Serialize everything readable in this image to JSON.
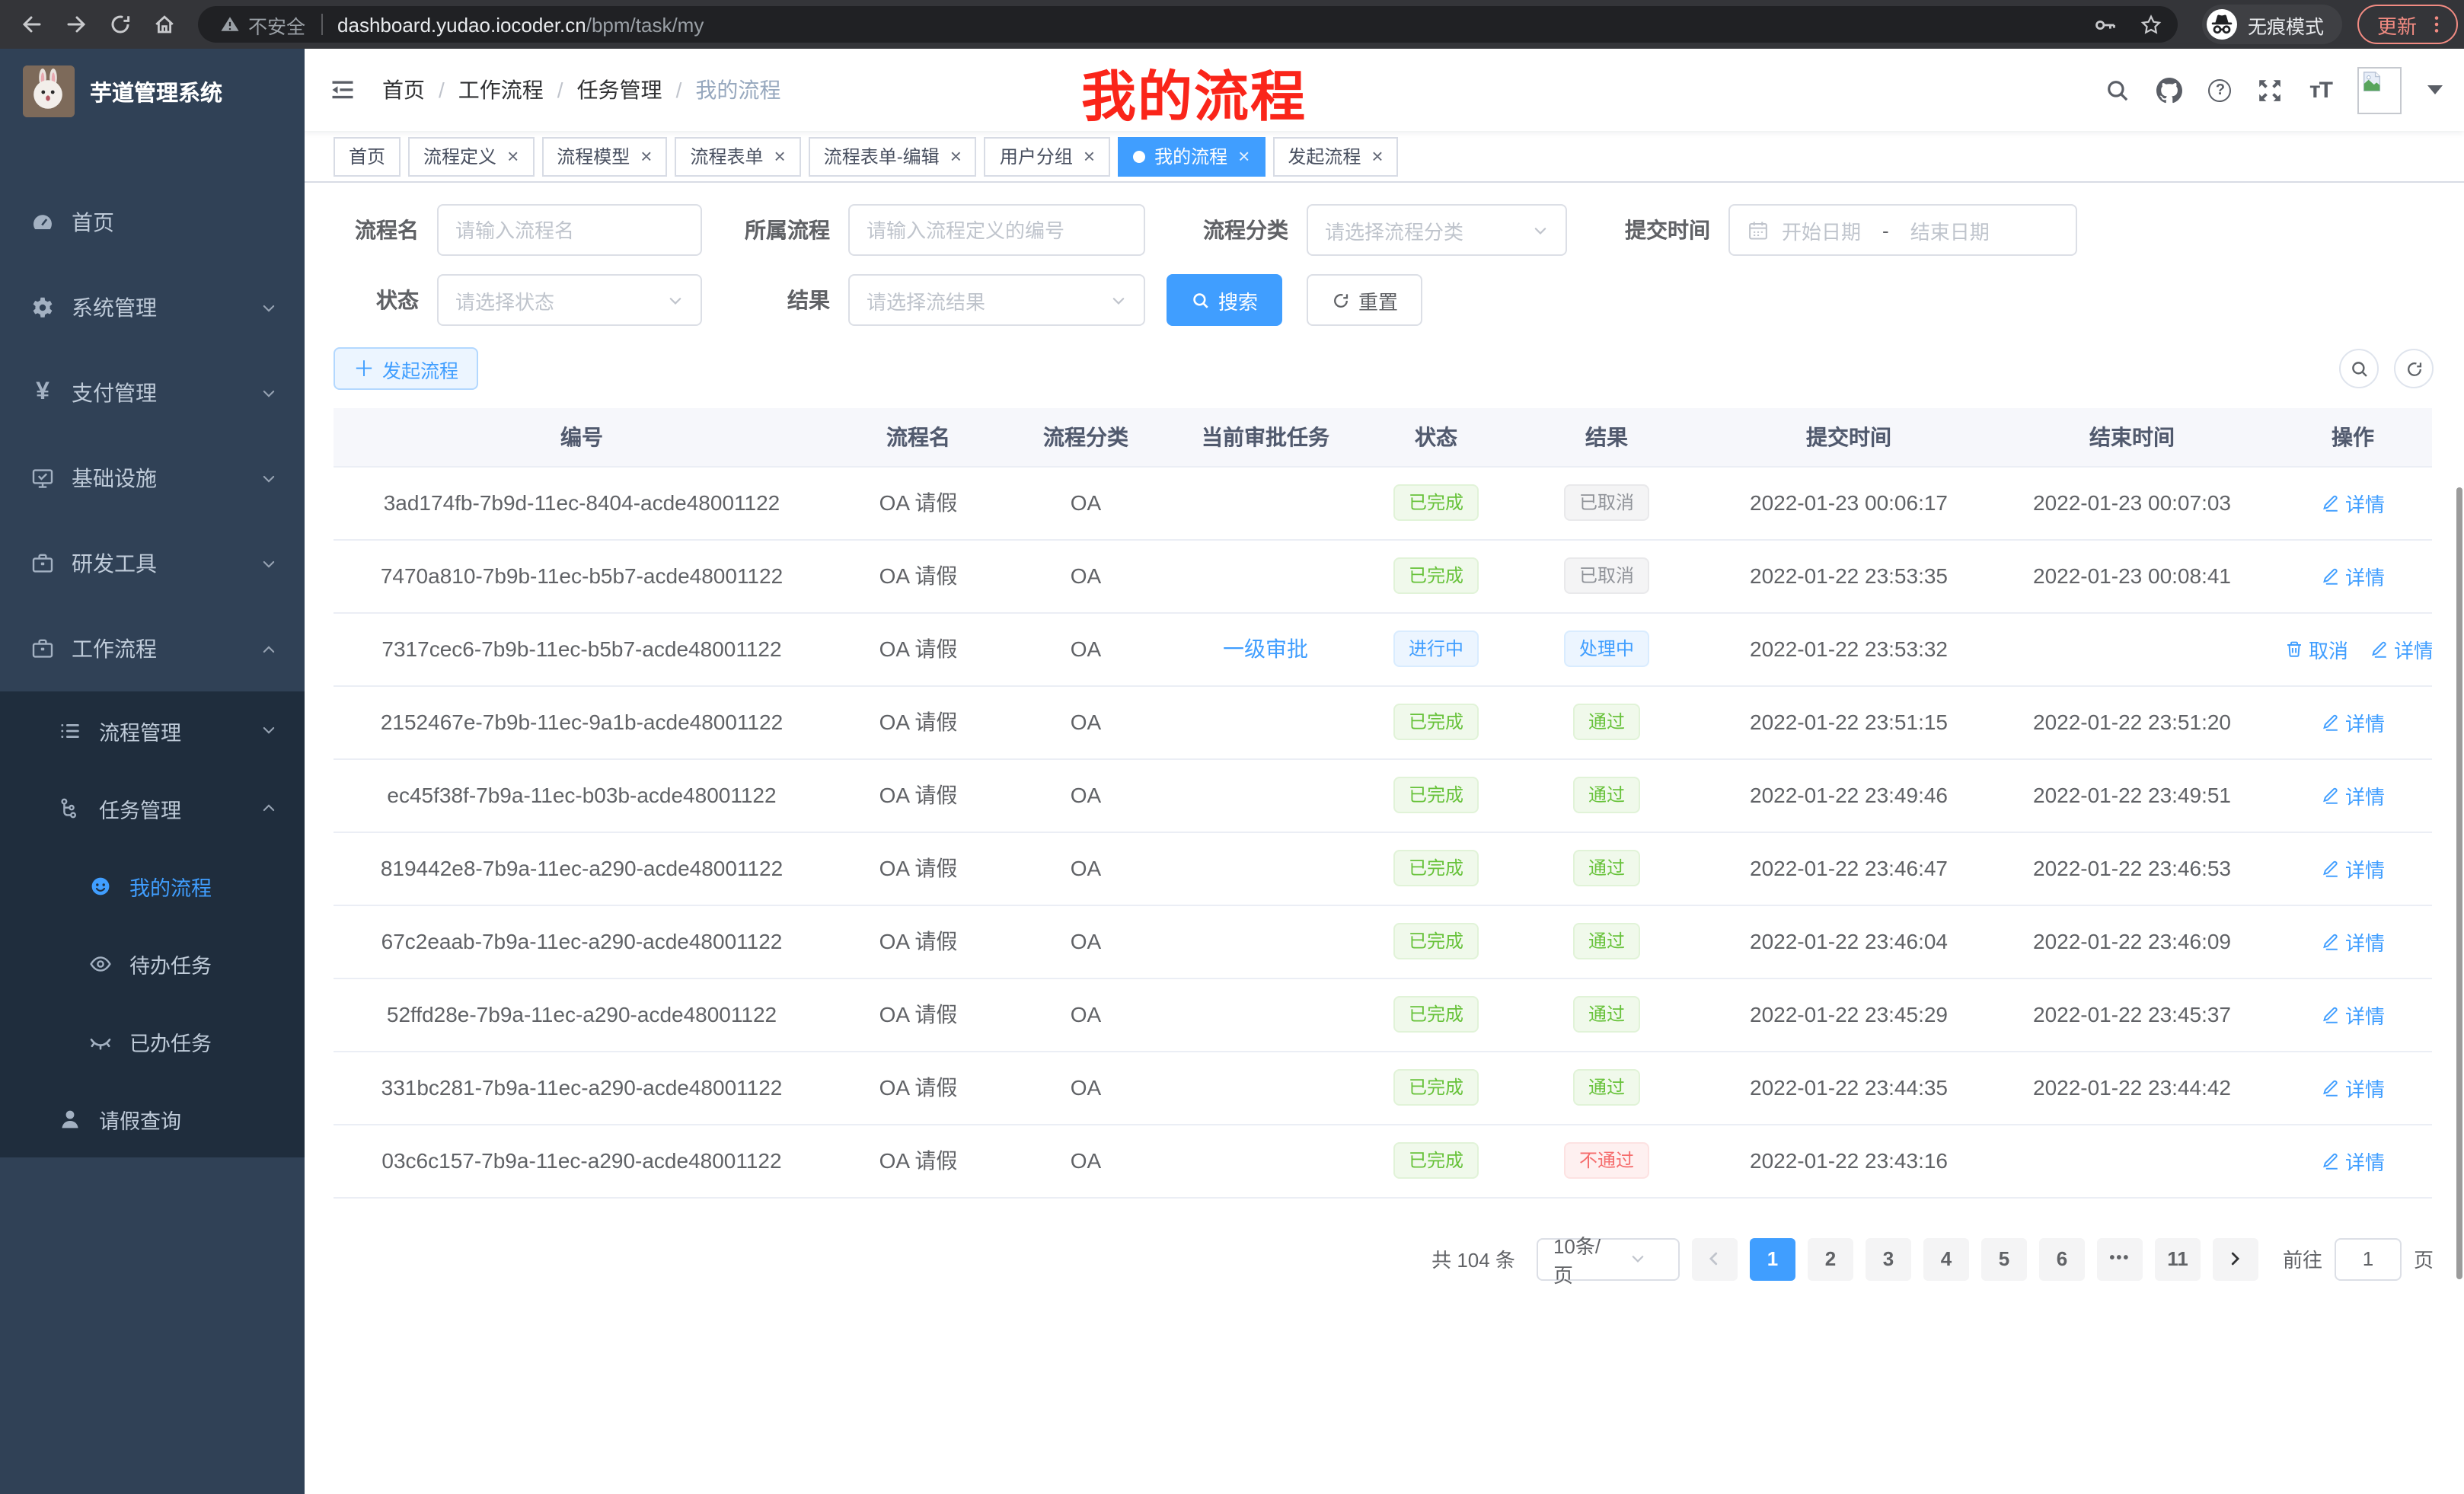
{
  "browser": {
    "security_label": "不安全",
    "url_host": "dashboard.yudao.iocoder.cn",
    "url_path": "/bpm/task/my",
    "incognito_label": "无痕模式",
    "update_label": "更新"
  },
  "sidebar": {
    "app_title": "芋道管理系统",
    "items": [
      {
        "label": "首页",
        "icon": "dashboard-icon",
        "level": 1
      },
      {
        "label": "系统管理",
        "icon": "gear-icon",
        "level": 1,
        "chevron": "down"
      },
      {
        "label": "支付管理",
        "icon": "yen-icon",
        "level": 1,
        "chevron": "down"
      },
      {
        "label": "基础设施",
        "icon": "monitor-icon",
        "level": 1,
        "chevron": "down"
      },
      {
        "label": "研发工具",
        "icon": "briefcase-icon",
        "level": 1,
        "chevron": "down"
      },
      {
        "label": "工作流程",
        "icon": "briefcase-icon",
        "level": 1,
        "chevron": "up"
      },
      {
        "label": "流程管理",
        "icon": "list-icon",
        "level": 2,
        "sub": true,
        "chevron": "down"
      },
      {
        "label": "任务管理",
        "icon": "flow-icon",
        "level": 2,
        "sub": true,
        "chevron": "up"
      },
      {
        "label": "我的流程",
        "icon": "face-icon",
        "level": 3,
        "sub": true,
        "active": true
      },
      {
        "label": "待办任务",
        "icon": "eye-icon",
        "level": 3,
        "sub": true
      },
      {
        "label": "已办任务",
        "icon": "eye-closed-icon",
        "level": 3,
        "sub": true
      },
      {
        "label": "请假查询",
        "icon": "user-icon",
        "level": 2,
        "sub": true
      }
    ]
  },
  "header": {
    "breadcrumb": [
      "首页",
      "工作流程",
      "任务管理",
      "我的流程"
    ],
    "overlay_title": "我的流程"
  },
  "tabs": [
    {
      "label": "首页",
      "closable": false
    },
    {
      "label": "流程定义",
      "closable": true
    },
    {
      "label": "流程模型",
      "closable": true
    },
    {
      "label": "流程表单",
      "closable": true
    },
    {
      "label": "流程表单-编辑",
      "closable": true
    },
    {
      "label": "用户分组",
      "closable": true
    },
    {
      "label": "我的流程",
      "closable": true,
      "active": true
    },
    {
      "label": "发起流程",
      "closable": true
    }
  ],
  "filters": {
    "process_name": {
      "label": "流程名",
      "placeholder": "请输入流程名"
    },
    "process_def": {
      "label": "所属流程",
      "placeholder": "请输入流程定义的编号"
    },
    "category": {
      "label": "流程分类",
      "placeholder": "请选择流程分类"
    },
    "submit_time": {
      "label": "提交时间",
      "start_placeholder": "开始日期",
      "separator": "-",
      "end_placeholder": "结束日期"
    },
    "status": {
      "label": "状态",
      "placeholder": "请选择状态"
    },
    "result": {
      "label": "结果",
      "placeholder": "请选择流结果"
    },
    "search_label": "搜索",
    "reset_label": "重置"
  },
  "toolbar": {
    "create_label": "发起流程"
  },
  "table": {
    "columns": [
      "编号",
      "流程名",
      "流程分类",
      "当前审批任务",
      "状态",
      "结果",
      "提交时间",
      "结束时间",
      "操作"
    ],
    "rows": [
      {
        "id": "3ad174fb-7b9d-11ec-8404-acde48001122",
        "name": "OA 请假",
        "category": "OA",
        "task": "",
        "status": {
          "text": "已完成",
          "type": "success"
        },
        "result": {
          "text": "已取消",
          "type": "info"
        },
        "submit": "2022-01-23 00:06:17",
        "end": "2022-01-23 00:07:03",
        "actions": [
          {
            "label": "详情",
            "icon": "edit-icon"
          }
        ]
      },
      {
        "id": "7470a810-7b9b-11ec-b5b7-acde48001122",
        "name": "OA 请假",
        "category": "OA",
        "task": "",
        "status": {
          "text": "已完成",
          "type": "success"
        },
        "result": {
          "text": "已取消",
          "type": "info"
        },
        "submit": "2022-01-22 23:53:35",
        "end": "2022-01-23 00:08:41",
        "actions": [
          {
            "label": "详情",
            "icon": "edit-icon"
          }
        ]
      },
      {
        "id": "7317cec6-7b9b-11ec-b5b7-acde48001122",
        "name": "OA 请假",
        "category": "OA",
        "task": "一级审批",
        "status": {
          "text": "进行中",
          "type": "primary"
        },
        "result": {
          "text": "处理中",
          "type": "primary"
        },
        "submit": "2022-01-22 23:53:32",
        "end": "",
        "actions": [
          {
            "label": "取消",
            "icon": "delete-icon"
          },
          {
            "label": "详情",
            "icon": "edit-icon"
          }
        ]
      },
      {
        "id": "2152467e-7b9b-11ec-9a1b-acde48001122",
        "name": "OA 请假",
        "category": "OA",
        "task": "",
        "status": {
          "text": "已完成",
          "type": "success"
        },
        "result": {
          "text": "通过",
          "type": "success"
        },
        "submit": "2022-01-22 23:51:15",
        "end": "2022-01-22 23:51:20",
        "actions": [
          {
            "label": "详情",
            "icon": "edit-icon"
          }
        ]
      },
      {
        "id": "ec45f38f-7b9a-11ec-b03b-acde48001122",
        "name": "OA 请假",
        "category": "OA",
        "task": "",
        "status": {
          "text": "已完成",
          "type": "success"
        },
        "result": {
          "text": "通过",
          "type": "success"
        },
        "submit": "2022-01-22 23:49:46",
        "end": "2022-01-22 23:49:51",
        "actions": [
          {
            "label": "详情",
            "icon": "edit-icon"
          }
        ]
      },
      {
        "id": "819442e8-7b9a-11ec-a290-acde48001122",
        "name": "OA 请假",
        "category": "OA",
        "task": "",
        "status": {
          "text": "已完成",
          "type": "success"
        },
        "result": {
          "text": "通过",
          "type": "success"
        },
        "submit": "2022-01-22 23:46:47",
        "end": "2022-01-22 23:46:53",
        "actions": [
          {
            "label": "详情",
            "icon": "edit-icon"
          }
        ]
      },
      {
        "id": "67c2eaab-7b9a-11ec-a290-acde48001122",
        "name": "OA 请假",
        "category": "OA",
        "task": "",
        "status": {
          "text": "已完成",
          "type": "success"
        },
        "result": {
          "text": "通过",
          "type": "success"
        },
        "submit": "2022-01-22 23:46:04",
        "end": "2022-01-22 23:46:09",
        "actions": [
          {
            "label": "详情",
            "icon": "edit-icon"
          }
        ]
      },
      {
        "id": "52ffd28e-7b9a-11ec-a290-acde48001122",
        "name": "OA 请假",
        "category": "OA",
        "task": "",
        "status": {
          "text": "已完成",
          "type": "success"
        },
        "result": {
          "text": "通过",
          "type": "success"
        },
        "submit": "2022-01-22 23:45:29",
        "end": "2022-01-22 23:45:37",
        "actions": [
          {
            "label": "详情",
            "icon": "edit-icon"
          }
        ]
      },
      {
        "id": "331bc281-7b9a-11ec-a290-acde48001122",
        "name": "OA 请假",
        "category": "OA",
        "task": "",
        "status": {
          "text": "已完成",
          "type": "success"
        },
        "result": {
          "text": "通过",
          "type": "success"
        },
        "submit": "2022-01-22 23:44:35",
        "end": "2022-01-22 23:44:42",
        "actions": [
          {
            "label": "详情",
            "icon": "edit-icon"
          }
        ]
      },
      {
        "id": "03c6c157-7b9a-11ec-a290-acde48001122",
        "name": "OA 请假",
        "category": "OA",
        "task": "",
        "status": {
          "text": "已完成",
          "type": "success"
        },
        "result": {
          "text": "不通过",
          "type": "danger"
        },
        "submit": "2022-01-22 23:43:16",
        "end": "",
        "actions": [
          {
            "label": "详情",
            "icon": "edit-icon"
          }
        ]
      }
    ]
  },
  "pagination": {
    "total_label": "共 104 条",
    "page_size": "10条/页",
    "pages": [
      {
        "label": "1",
        "active": true
      },
      {
        "label": "2"
      },
      {
        "label": "3"
      },
      {
        "label": "4"
      },
      {
        "label": "5"
      },
      {
        "label": "6"
      },
      {
        "label": "•••",
        "ellipsis": true
      },
      {
        "label": "11"
      }
    ],
    "goto_label": "前往",
    "goto_value": "1",
    "goto_unit": "页"
  },
  "colors": {
    "accent": "#409eff",
    "sidebar_bg": "#304156",
    "submenu_bg": "#1f2d3d",
    "success": "#67c23a",
    "danger": "#f56c6c",
    "info": "#909399",
    "overlay_red": "#fa251a"
  }
}
